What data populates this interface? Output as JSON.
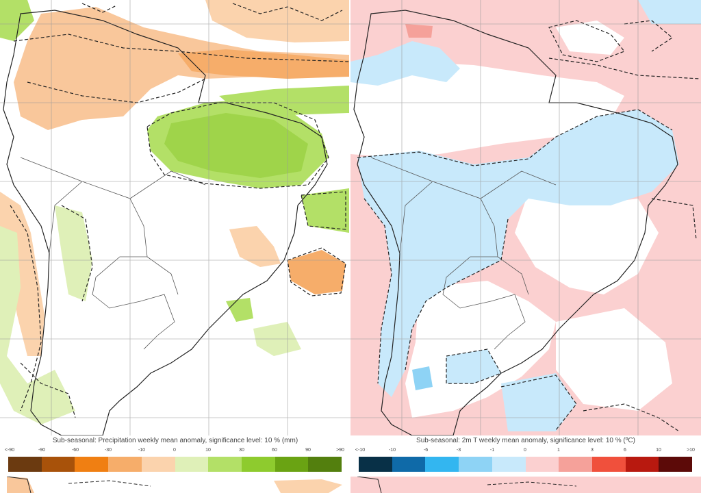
{
  "panels": [
    {
      "id": "precipitation",
      "caption": "Sub-seasonal: Precipitation weekly mean anomaly, significance level: 10 % (mm)",
      "ticks": [
        "<-90",
        "-90",
        "-60",
        "-30",
        "-10",
        "0",
        "10",
        "30",
        "60",
        "90",
        ">90"
      ],
      "colors": [
        "#6b3a10",
        "#a8520a",
        "#f07f12",
        "#f6ad6a",
        "#fbd3ad",
        "#dff0b8",
        "#b3e067",
        "#8ecb2e",
        "#6aa313",
        "#537f0e"
      ]
    },
    {
      "id": "temperature",
      "caption": "Sub-seasonal: 2m T weekly mean anomaly, significance level: 10 % (ºC)",
      "ticks": [
        "<-10",
        "-10",
        "-6",
        "-3",
        "-1",
        "0",
        "1",
        "3",
        "6",
        "10",
        ">10"
      ],
      "colors": [
        "#083047",
        "#0f6aa8",
        "#33b6f0",
        "#8ed3f5",
        "#c8e9fb",
        "#fbd0d0",
        "#f5a19a",
        "#f0503c",
        "#b8190f",
        "#5c0a08"
      ]
    }
  ]
}
